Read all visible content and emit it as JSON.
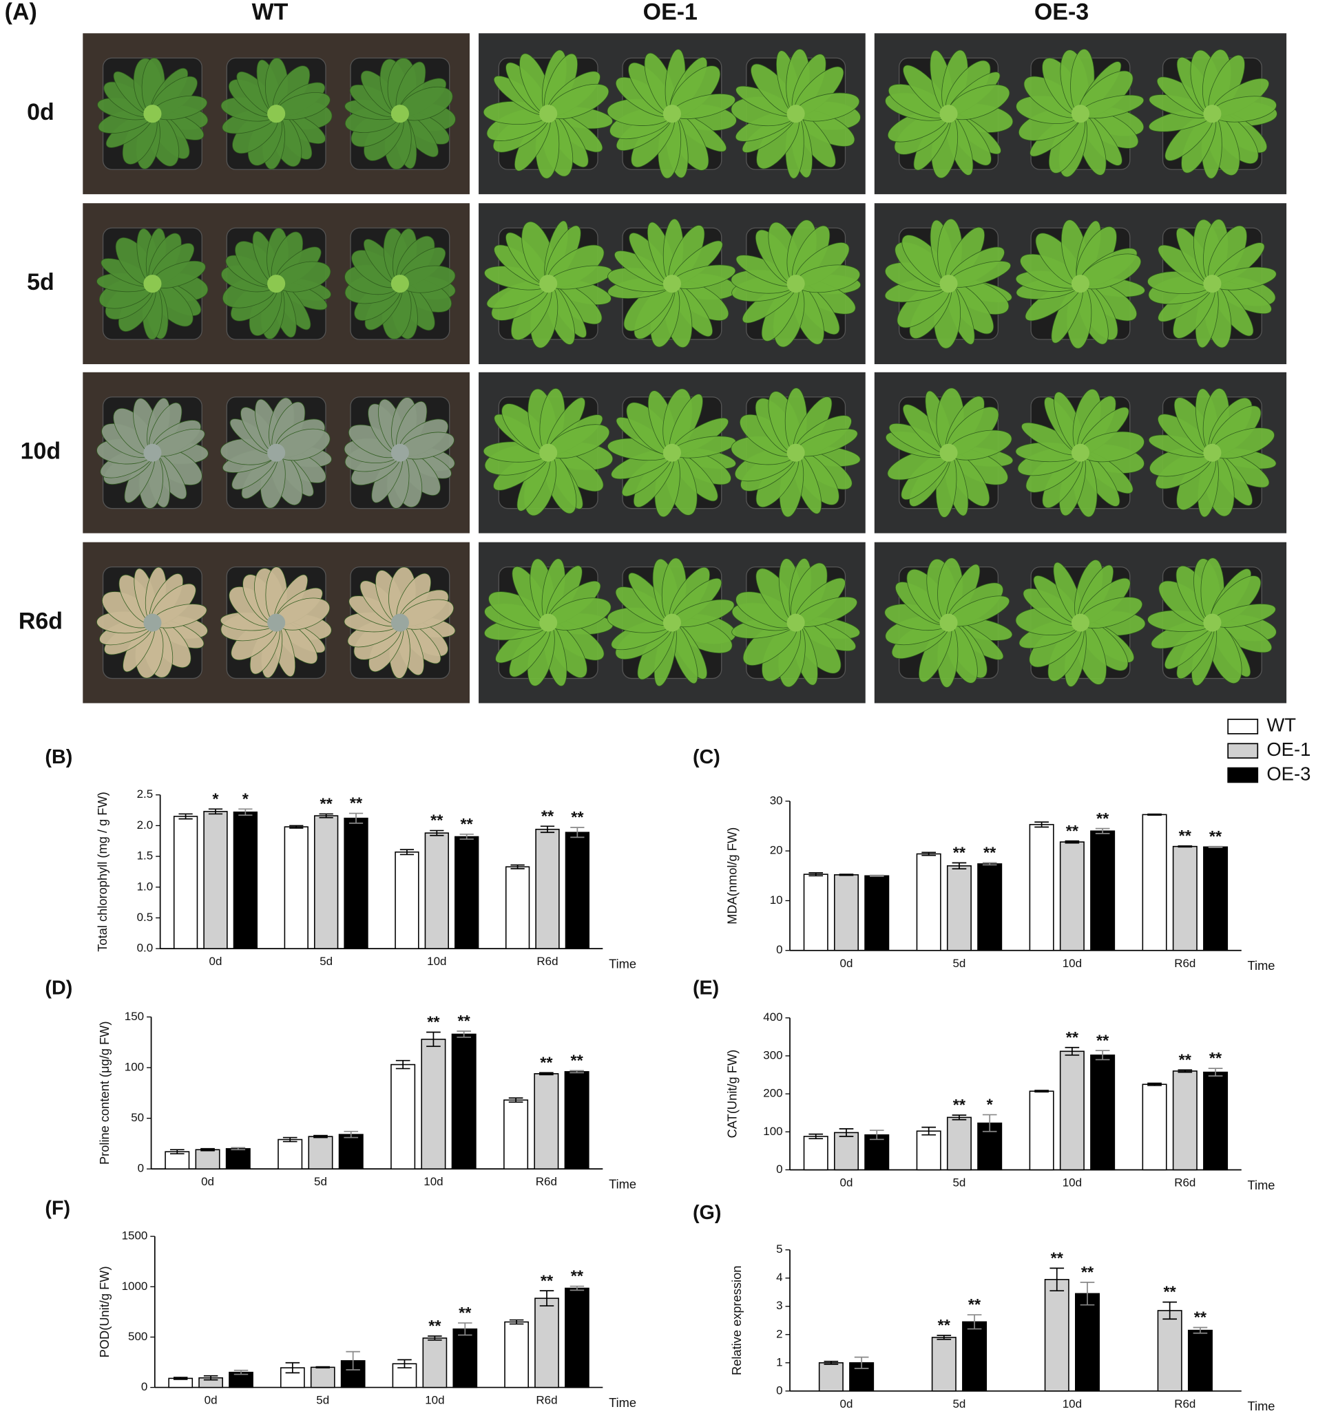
{
  "panel_a": {
    "label": "(A)",
    "columns": [
      "WT",
      "OE-1",
      "OE-3"
    ],
    "rows": [
      "0d",
      "5d",
      "10d",
      "R6d"
    ]
  },
  "chart_data": [
    {
      "type": "bar",
      "panel": "(B)",
      "ylabel": "Total chlorophyll (mg / g FW)",
      "xlabel": "Time",
      "categories": [
        "0d",
        "5d",
        "10d",
        "R6d"
      ],
      "ylim": [
        0,
        2.5
      ],
      "yticks": [
        {
          "value": 0,
          "label": "0.0"
        },
        0.5,
        {
          "value": 1,
          "label": "1.0"
        },
        1.5,
        {
          "value": 2,
          "label": "2.0"
        },
        2.5
      ],
      "series": [
        {
          "name": "WT",
          "color": "#ffffff",
          "values": [
            2.15,
            1.98,
            1.57,
            1.33
          ],
          "errors": [
            0.04,
            0.02,
            0.04,
            0.03
          ],
          "annotations": [
            null,
            null,
            null,
            null
          ]
        },
        {
          "name": "OE-1",
          "color": "#d0d0d0",
          "values": [
            2.23,
            2.16,
            1.88,
            1.94
          ],
          "errors": [
            0.04,
            0.03,
            0.04,
            0.05
          ],
          "annotations": [
            "*",
            "**",
            "**",
            "**"
          ]
        },
        {
          "name": "OE-3",
          "color": "#000000",
          "values": [
            2.22,
            2.12,
            1.82,
            1.89
          ],
          "errors": [
            0.05,
            0.08,
            0.04,
            0.08
          ],
          "annotations": [
            "*",
            "**",
            "**",
            "**"
          ]
        }
      ]
    },
    {
      "type": "bar",
      "panel": "(C)",
      "ylabel": "MDA(nmol/g FW)",
      "xlabel": "Time",
      "categories": [
        "0d",
        "5d",
        "10d",
        "R6d"
      ],
      "ylim": [
        0,
        30
      ],
      "yticks": [
        0,
        10,
        20,
        30
      ],
      "series": [
        {
          "name": "WT",
          "color": "#ffffff",
          "values": [
            15.3,
            19.4,
            25.3,
            27.3
          ],
          "errors": [
            0.3,
            0.3,
            0.5,
            0.1
          ],
          "annotations": [
            null,
            null,
            null,
            null
          ]
        },
        {
          "name": "OE-1",
          "color": "#d0d0d0",
          "values": [
            15.2,
            17.0,
            21.8,
            20.9
          ],
          "errors": [
            0.1,
            0.6,
            0.2,
            0.1
          ],
          "annotations": [
            null,
            "**",
            "**",
            "**"
          ]
        },
        {
          "name": "OE-3",
          "color": "#000000",
          "values": [
            15.0,
            17.4,
            24.0,
            20.8
          ],
          "errors": [
            0.1,
            0.2,
            0.5,
            0.1
          ],
          "annotations": [
            null,
            "**",
            "**",
            "**"
          ]
        }
      ]
    },
    {
      "type": "bar",
      "panel": "(D)",
      "ylabel": "Proline content (μg/g FW)",
      "xlabel": "Time",
      "categories": [
        "0d",
        "5d",
        "10d",
        "R6d"
      ],
      "ylim": [
        0,
        150
      ],
      "yticks": [
        0,
        50,
        100,
        150
      ],
      "series": [
        {
          "name": "WT",
          "color": "#ffffff",
          "values": [
            17,
            29,
            103,
            68
          ],
          "errors": [
            2,
            2,
            4,
            2
          ],
          "annotations": [
            null,
            null,
            null,
            null
          ]
        },
        {
          "name": "OE-1",
          "color": "#d0d0d0",
          "values": [
            19,
            32,
            128,
            94
          ],
          "errors": [
            1,
            1,
            7,
            1
          ],
          "annotations": [
            null,
            null,
            "**",
            "**"
          ]
        },
        {
          "name": "OE-3",
          "color": "#000000",
          "values": [
            20,
            34,
            133,
            96
          ],
          "errors": [
            1,
            3,
            3,
            1
          ],
          "annotations": [
            null,
            null,
            "**",
            "**"
          ]
        }
      ]
    },
    {
      "type": "bar",
      "panel": "(E)",
      "ylabel": "CAT(Unit/g FW)",
      "xlabel": "Time",
      "categories": [
        "0d",
        "5d",
        "10d",
        "R6d"
      ],
      "ylim": [
        0,
        400
      ],
      "yticks": [
        0,
        100,
        200,
        300,
        400
      ],
      "series": [
        {
          "name": "WT",
          "color": "#ffffff",
          "values": [
            88,
            102,
            207,
            225
          ],
          "errors": [
            6,
            10,
            2,
            3
          ],
          "annotations": [
            null,
            null,
            null,
            null
          ]
        },
        {
          "name": "OE-1",
          "color": "#d0d0d0",
          "values": [
            98,
            138,
            312,
            260
          ],
          "errors": [
            10,
            6,
            10,
            3
          ],
          "annotations": [
            null,
            "**",
            "**",
            "**"
          ]
        },
        {
          "name": "OE-3",
          "color": "#000000",
          "values": [
            92,
            123,
            302,
            257
          ],
          "errors": [
            12,
            22,
            12,
            10
          ],
          "annotations": [
            null,
            "*",
            "**",
            "**"
          ]
        }
      ]
    },
    {
      "type": "bar",
      "panel": "(F)",
      "ylabel": "POD(Unit/g FW)",
      "xlabel": "Time",
      "categories": [
        "0d",
        "5d",
        "10d",
        "R6d"
      ],
      "ylim": [
        0,
        1500
      ],
      "yticks": [
        0,
        500,
        1000,
        1500
      ],
      "series": [
        {
          "name": "WT",
          "color": "#ffffff",
          "values": [
            90,
            195,
            235,
            650
          ],
          "errors": [
            10,
            50,
            40,
            20
          ],
          "annotations": [
            null,
            null,
            null,
            null
          ]
        },
        {
          "name": "OE-1",
          "color": "#d0d0d0",
          "values": [
            95,
            200,
            490,
            885
          ],
          "errors": [
            20,
            5,
            20,
            75
          ],
          "annotations": [
            null,
            null,
            "**",
            "**"
          ]
        },
        {
          "name": "OE-3",
          "color": "#000000",
          "values": [
            150,
            265,
            580,
            985
          ],
          "errors": [
            20,
            90,
            60,
            20
          ],
          "annotations": [
            null,
            null,
            "**",
            "**"
          ]
        }
      ]
    },
    {
      "type": "bar",
      "panel": "(G)",
      "ylabel": "Relative expression",
      "xlabel": "Time",
      "categories": [
        "0d",
        "5d",
        "10d",
        "R6d"
      ],
      "ylim": [
        0,
        5
      ],
      "yticks": [
        0,
        1,
        2,
        3,
        4,
        5
      ],
      "series": [
        {
          "name": "OE-1",
          "color": "#d0d0d0",
          "values": [
            1.0,
            1.9,
            3.95,
            2.85
          ],
          "errors": [
            0.05,
            0.07,
            0.4,
            0.3
          ],
          "annotations": [
            null,
            "**",
            "**",
            "**"
          ]
        },
        {
          "name": "OE-3",
          "color": "#000000",
          "values": [
            1.0,
            2.45,
            3.45,
            2.15
          ],
          "errors": [
            0.2,
            0.25,
            0.4,
            0.1
          ],
          "annotations": [
            null,
            "**",
            "**",
            "**"
          ]
        }
      ]
    }
  ]
}
